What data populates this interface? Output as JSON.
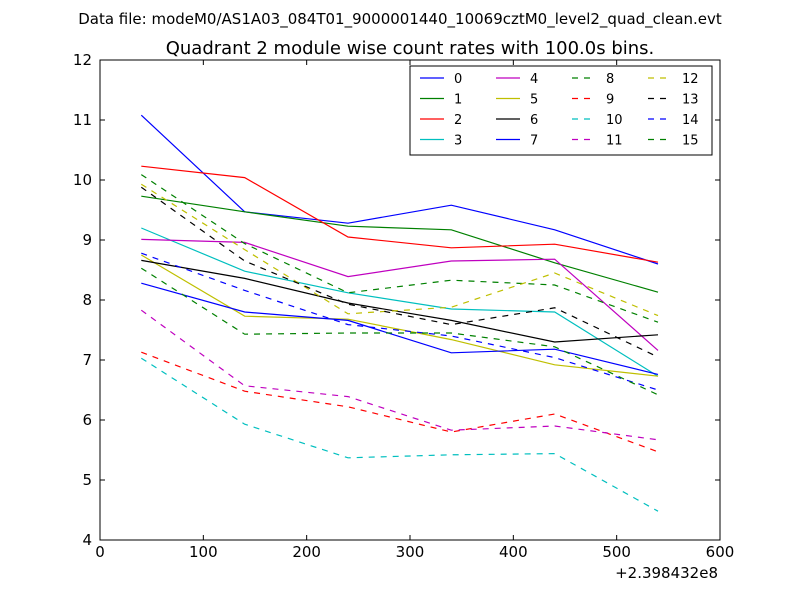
{
  "suptitle": "Data file: modeM0/AS1A03_084T01_9000001440_10069cztM0_level2_quad_clean.evt",
  "chart_data": {
    "type": "line",
    "title": "Quadrant 2 module wise count rates with 100.0s bins.",
    "x_offset_label": "+2.398432e8",
    "xlim": [
      0,
      600
    ],
    "ylim": [
      4,
      12
    ],
    "x_ticks": [
      "0",
      "100",
      "200",
      "300",
      "400",
      "500",
      "600"
    ],
    "y_ticks": [
      "4",
      "5",
      "6",
      "7",
      "8",
      "9",
      "10",
      "11",
      "12"
    ],
    "x": [
      40,
      140,
      240,
      340,
      440,
      540
    ],
    "legend_position": "top-right",
    "series": [
      {
        "name": "0",
        "color": "#0000ff",
        "dash": "solid",
        "values": [
          11.08,
          9.47,
          9.28,
          9.58,
          9.17,
          8.6
        ]
      },
      {
        "name": "1",
        "color": "#008000",
        "dash": "solid",
        "values": [
          9.73,
          9.47,
          9.23,
          9.17,
          8.62,
          8.13
        ]
      },
      {
        "name": "2",
        "color": "#ff0000",
        "dash": "solid",
        "values": [
          10.23,
          10.04,
          9.05,
          8.87,
          8.93,
          8.63
        ]
      },
      {
        "name": "3",
        "color": "#00bfbf",
        "dash": "solid",
        "values": [
          9.2,
          8.48,
          8.12,
          7.85,
          7.8,
          6.73
        ]
      },
      {
        "name": "4",
        "color": "#bf00bf",
        "dash": "solid",
        "values": [
          9.01,
          8.96,
          8.39,
          8.65,
          8.68,
          7.16
        ]
      },
      {
        "name": "5",
        "color": "#bfbf00",
        "dash": "solid",
        "values": [
          8.75,
          7.73,
          7.68,
          7.34,
          6.92,
          6.73
        ]
      },
      {
        "name": "6",
        "color": "#000000",
        "dash": "solid",
        "values": [
          8.66,
          8.36,
          7.95,
          7.66,
          7.3,
          7.42
        ]
      },
      {
        "name": "7",
        "color": "#0000ff",
        "dash": "solid",
        "values": [
          8.28,
          7.8,
          7.66,
          7.12,
          7.18,
          6.76
        ]
      },
      {
        "name": "8",
        "color": "#008000",
        "dash": "dashed",
        "values": [
          10.09,
          8.94,
          8.12,
          8.33,
          8.25,
          7.63
        ]
      },
      {
        "name": "9",
        "color": "#ff0000",
        "dash": "dashed",
        "values": [
          7.13,
          6.48,
          6.22,
          5.8,
          6.1,
          5.47
        ]
      },
      {
        "name": "10",
        "color": "#00bfbf",
        "dash": "dashed",
        "values": [
          7.03,
          5.93,
          5.37,
          5.42,
          5.44,
          4.48
        ]
      },
      {
        "name": "11",
        "color": "#bf00bf",
        "dash": "dashed",
        "values": [
          7.83,
          6.57,
          6.39,
          5.83,
          5.9,
          5.67
        ]
      },
      {
        "name": "12",
        "color": "#bfbf00",
        "dash": "dashed",
        "values": [
          9.93,
          8.84,
          7.77,
          7.88,
          8.45,
          7.74
        ]
      },
      {
        "name": "13",
        "color": "#000000",
        "dash": "dashed",
        "values": [
          9.88,
          8.65,
          7.93,
          7.59,
          7.87,
          7.05
        ]
      },
      {
        "name": "14",
        "color": "#0000ff",
        "dash": "dashed",
        "values": [
          8.78,
          8.16,
          7.59,
          7.4,
          7.04,
          6.5
        ]
      },
      {
        "name": "15",
        "color": "#008000",
        "dash": "dashed",
        "values": [
          8.53,
          7.43,
          7.45,
          7.45,
          7.22,
          6.42
        ]
      }
    ]
  }
}
